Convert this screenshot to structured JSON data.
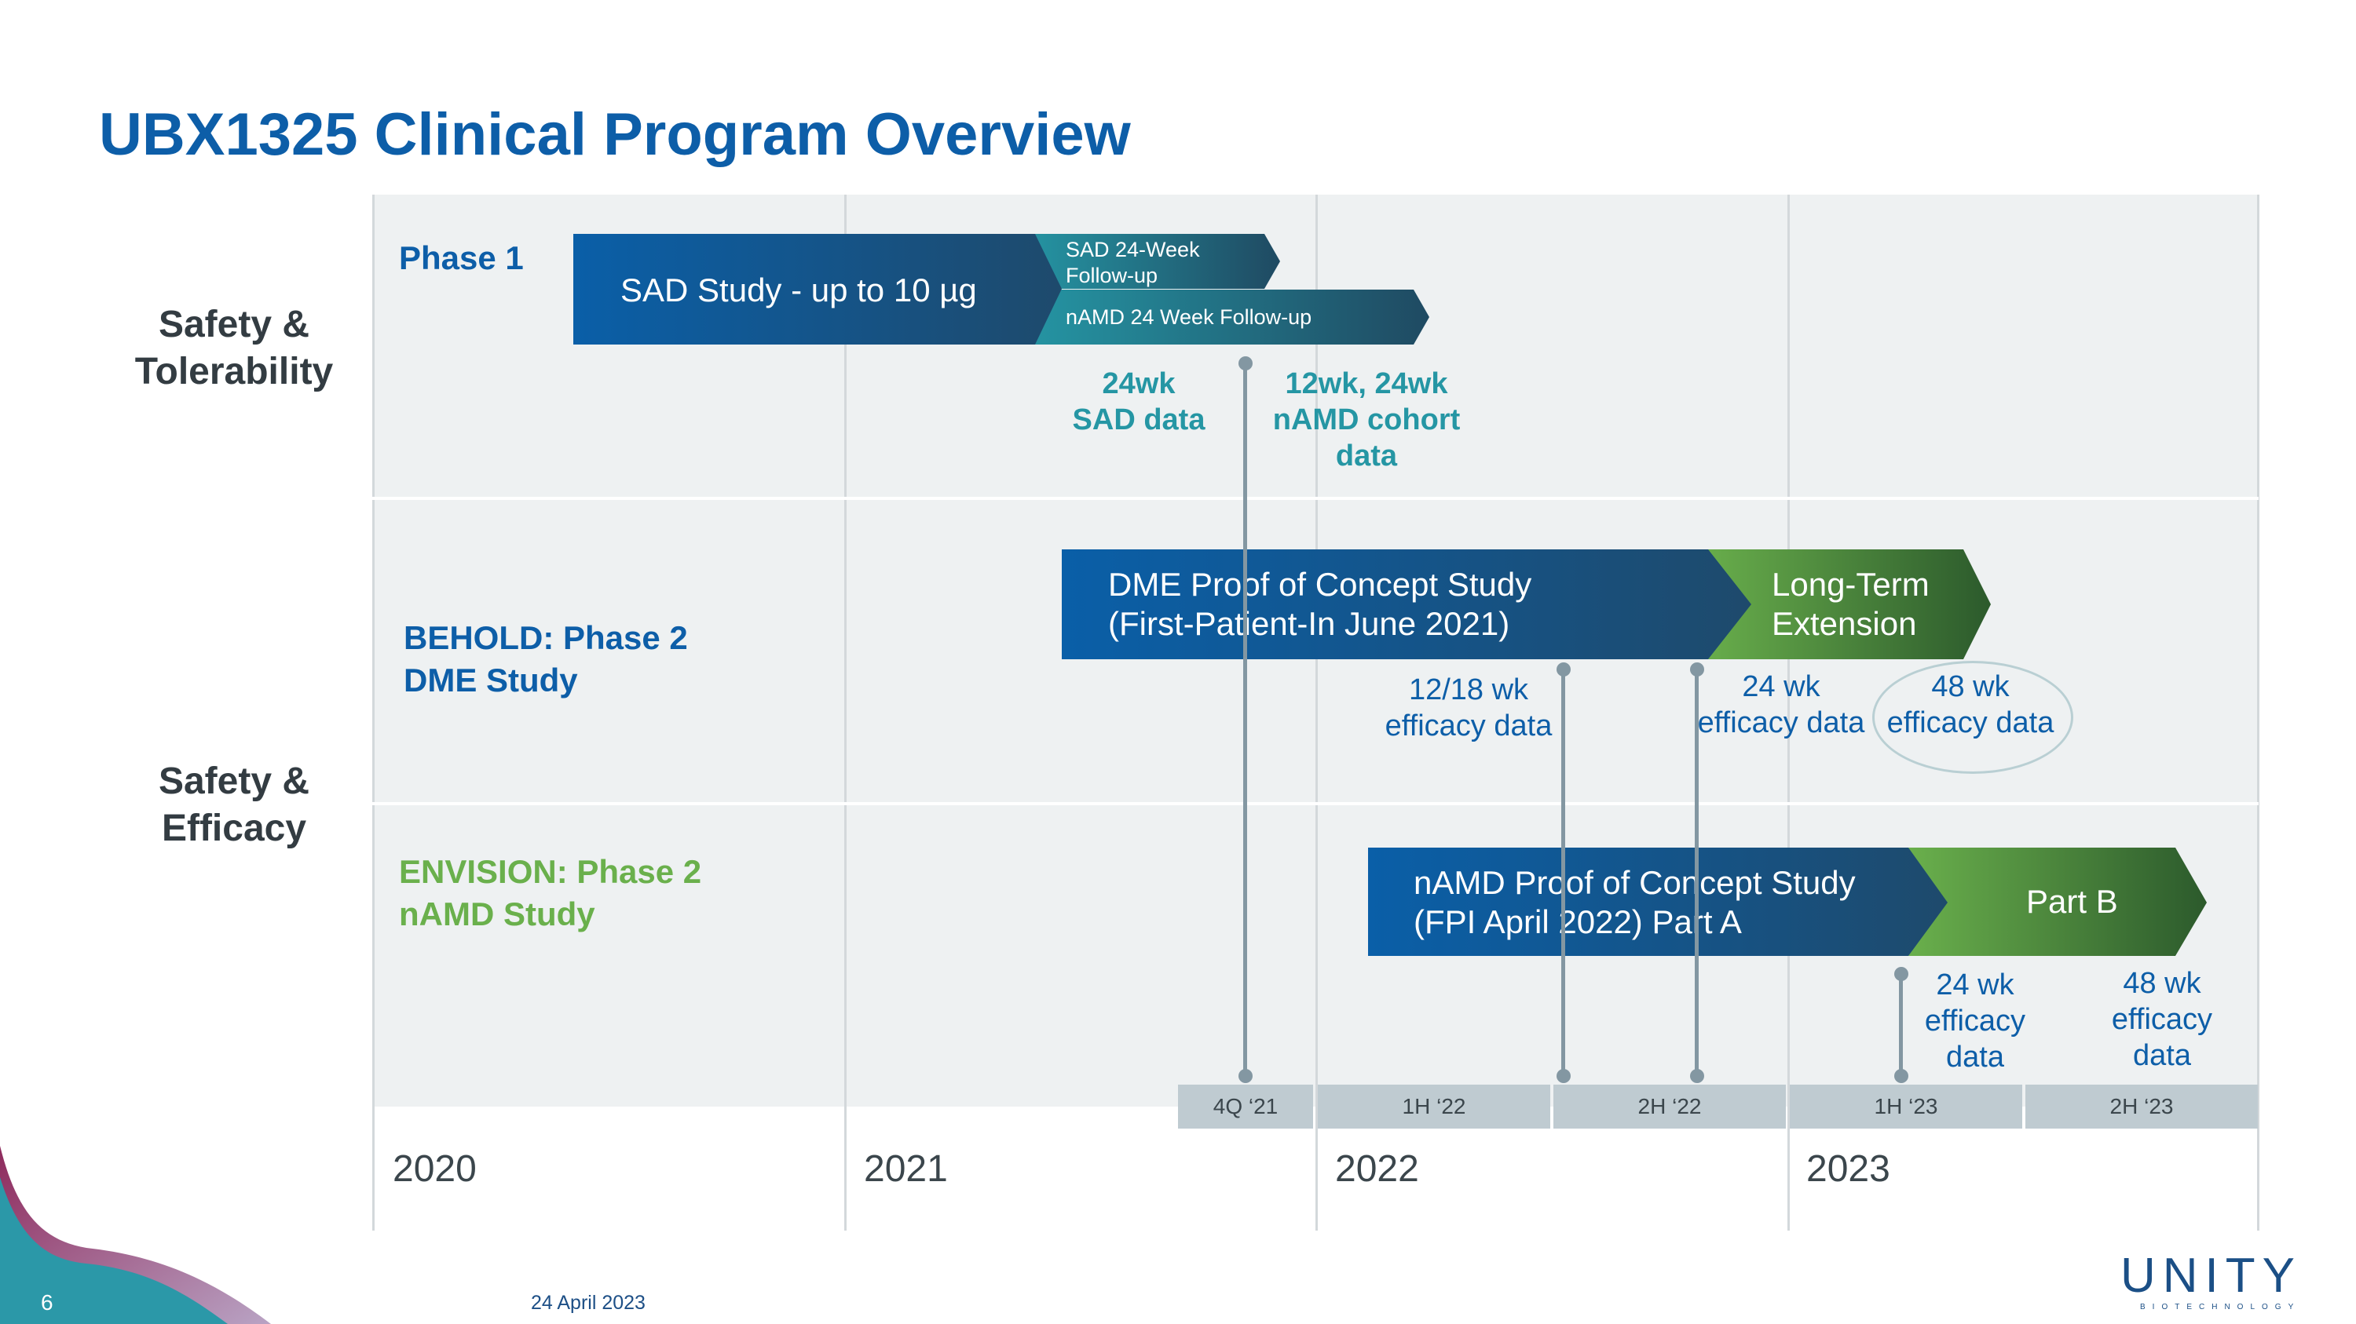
{
  "title": "UBX1325 Clinical Program Overview",
  "categories": {
    "safety_tolerability": "Safety & Tolerability",
    "safety_efficacy": "Safety & Efficacy"
  },
  "phases": {
    "phase1": "Phase 1",
    "behold_line1": "BEHOLD: Phase 2",
    "behold_line2": "DME Study",
    "envision_line1": "ENVISION: Phase 2",
    "envision_line2": "nAMD Study"
  },
  "bars": {
    "sad_study": "SAD Study - up to 10 µg",
    "sad_followup": "SAD 24-Week Follow-up",
    "namd_followup": "nAMD 24 Week Follow-up",
    "dme_line1": "DME Proof of Concept Study",
    "dme_line2": "(First-Patient-In June 2021)",
    "lte_line1": "Long-Term",
    "lte_line2": "Extension",
    "namd_poc_line1": "nAMD Proof of Concept Study",
    "namd_poc_line2": "(FPI April 2022) Part A",
    "part_b": "Part B"
  },
  "milestones": {
    "sad_data_1": "24wk",
    "sad_data_2": "SAD data",
    "namd_cohort_1": "12wk, 24wk",
    "namd_cohort_2": "nAMD cohort",
    "namd_cohort_3": "data",
    "dme_1218_1": "12/18 wk",
    "dme_1218_2": "efficacy data",
    "dme_24_1": "24 wk",
    "dme_24_2": "efficacy data",
    "dme_48_1": "48 wk",
    "dme_48_2": "efficacy data",
    "namd_24_1": "24 wk",
    "namd_24_2": "efficacy",
    "namd_24_3": "data",
    "namd_48_1": "48 wk",
    "namd_48_2": "efficacy",
    "namd_48_3": "data"
  },
  "periods": [
    "4Q ‘21",
    "1H ‘22",
    "2H ‘22",
    "1H ‘23",
    "2H ‘23"
  ],
  "years": [
    "2020",
    "2021",
    "2022",
    "2023"
  ],
  "footer": {
    "page_number": "6",
    "date": "24 April 2023",
    "logo": "UNITY",
    "logo_sub": "BIOTECHNOLOGY"
  },
  "colors": {
    "title_blue": "#0d5ea8",
    "teal": "#2596a4",
    "green": "#6ab04c",
    "grid_bg": "#eef1f2",
    "stem": "#8397a2"
  }
}
